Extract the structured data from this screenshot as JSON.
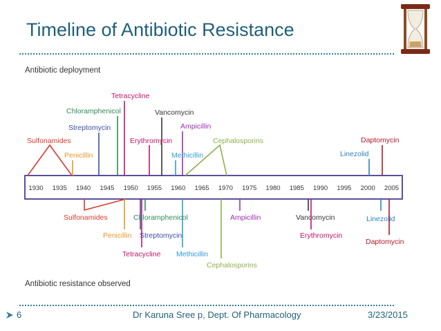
{
  "slide": {
    "title": "Timeline of Antibiotic Resistance",
    "page_number": "6",
    "author": "Dr Karuna Sree p, Dept. Of Pharmacology",
    "date": "3/23/2015"
  },
  "diagram": {
    "top_heading": "Antibiotic deployment",
    "bottom_heading": "Antibiotic resistance observed",
    "years": [
      "1930",
      "1935",
      "1940",
      "1945",
      "1950",
      "1955",
      "1960",
      "1965",
      "1970",
      "1975",
      "1980",
      "1985",
      "1990",
      "1995",
      "2000",
      "2005"
    ],
    "deployment": [
      {
        "label": "Sulfonamides",
        "color": "#d93a2b"
      },
      {
        "label": "Penicillin",
        "color": "#e8962b"
      },
      {
        "label": "Streptomycin",
        "color": "#3a4fa3"
      },
      {
        "label": "Chloramphenicol",
        "color": "#2e8b57"
      },
      {
        "label": "Tetracycline",
        "color": "#c0136a"
      },
      {
        "label": "Erythromycin",
        "color": "#c0136a"
      },
      {
        "label": "Vancomycin",
        "color": "#333333"
      },
      {
        "label": "Ampicillin",
        "color": "#9b2fae"
      },
      {
        "label": "Methicillin",
        "color": "#2e9bd6"
      },
      {
        "label": "Cephalosporins",
        "color": "#8db04b"
      },
      {
        "label": "Linezolid",
        "color": "#2e7fc1"
      },
      {
        "label": "Daptomycin",
        "color": "#b2182b"
      }
    ],
    "resistance": [
      {
        "label": "Sulfonamides",
        "color": "#d93a2b"
      },
      {
        "label": "Penicillin",
        "color": "#e8962b"
      },
      {
        "label": "Chloramphenicol",
        "color": "#2e8b57"
      },
      {
        "label": "Streptomycin",
        "color": "#3a4fa3"
      },
      {
        "label": "Tetracycline",
        "color": "#c0136a"
      },
      {
        "label": "Methicillin",
        "color": "#2e9bd6"
      },
      {
        "label": "Cephalosporins",
        "color": "#8db04b"
      },
      {
        "label": "Ampicillin",
        "color": "#9b2fae"
      },
      {
        "label": "Vancomycin",
        "color": "#333333"
      },
      {
        "label": "Erythromycin",
        "color": "#c0136a"
      },
      {
        "label": "Linezolid",
        "color": "#2e7fc1"
      },
      {
        "label": "Daptomycin",
        "color": "#b2182b"
      }
    ],
    "axis_color": "#5a4fa0"
  }
}
